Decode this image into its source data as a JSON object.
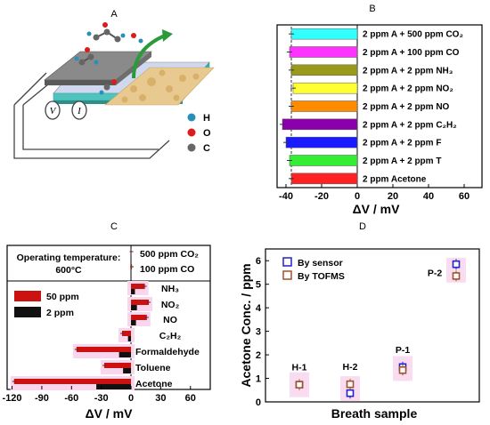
{
  "panel_labels": {
    "A": "A",
    "B": "B",
    "C": "C",
    "D": "D"
  },
  "panel_a": {
    "legend": [
      {
        "symbol": "H",
        "color": "#2a8fb5"
      },
      {
        "symbol": "O",
        "color": "#e01a1a"
      },
      {
        "symbol": "C",
        "color": "#666666"
      }
    ],
    "electrode_labels": [
      "V",
      "I"
    ]
  },
  "colors": {
    "panel_c_50ppm": "#cc1111",
    "panel_c_2ppm": "#111111",
    "highlight": "#f9d6ee",
    "by_sensor": "#2222cc",
    "by_tofms": "#a0522d"
  },
  "chart_data": [
    {
      "type": "bar",
      "orientation": "horizontal",
      "xlabel": "ΔV / mV",
      "xlim": [
        -45,
        70
      ],
      "xticks": [
        -40,
        -20,
        0,
        20,
        40,
        60
      ],
      "categories": [
        "2 ppm A + 500 ppm CO₂",
        "2 ppm A + 100 ppm CO",
        "2 ppm A + 2 ppm NH₃",
        "2 ppm A + 2 ppm NO₂",
        "2 ppm A + 2 ppm NO",
        "2 ppm A + 2 ppm C₂H₂",
        "2 ppm A + 2 ppm F",
        "2 ppm A + 2 ppm T",
        "2 ppm Acetone"
      ],
      "values": [
        -37,
        -38,
        -37,
        -36,
        -37,
        -42,
        -40,
        -38,
        -37
      ],
      "bar_colors": [
        "#33ffff",
        "#ff33ff",
        "#9a9a1a",
        "#ffff33",
        "#ff8c00",
        "#8b00aa",
        "#1a1aff",
        "#33ee33",
        "#ff2222"
      ],
      "reference_line": -37
    },
    {
      "type": "bar",
      "orientation": "horizontal",
      "xlabel": "ΔV / mV",
      "xlim": [
        -125,
        80
      ],
      "xticks": [
        -120,
        -90,
        -60,
        -30,
        0,
        30,
        60
      ],
      "title_lines": [
        "Operating temperature:",
        "600°C"
      ],
      "categories": [
        "500 ppm CO₂",
        "100 ppm CO",
        "NH₃",
        "NO₂",
        "NO",
        "C₂H₂",
        "Formaldehyde",
        "Toluene",
        "Acetone"
      ],
      "series": [
        {
          "name": "50 ppm",
          "values": [
            0.5,
            1,
            14,
            18,
            16,
            -9,
            -55,
            -27,
            -118
          ]
        },
        {
          "name": "2 ppm",
          "values": [
            0.3,
            0.3,
            4,
            6,
            5,
            -3,
            -12,
            -8,
            -35
          ]
        }
      ]
    },
    {
      "type": "scatter",
      "xlabel": "Breath sample",
      "ylabel": "Acetone Conc. / ppm",
      "ylim": [
        0,
        6.5
      ],
      "yticks": [
        0,
        1,
        2,
        3,
        4,
        5,
        6
      ],
      "categories": [
        "H-1",
        "H-2",
        "P-1",
        "P-2"
      ],
      "series": [
        {
          "name": "By sensor",
          "values": [
            0.73,
            0.37,
            1.48,
            5.85
          ]
        },
        {
          "name": "By TOFMS",
          "values": [
            0.73,
            0.75,
            1.35,
            5.35
          ]
        }
      ]
    }
  ]
}
